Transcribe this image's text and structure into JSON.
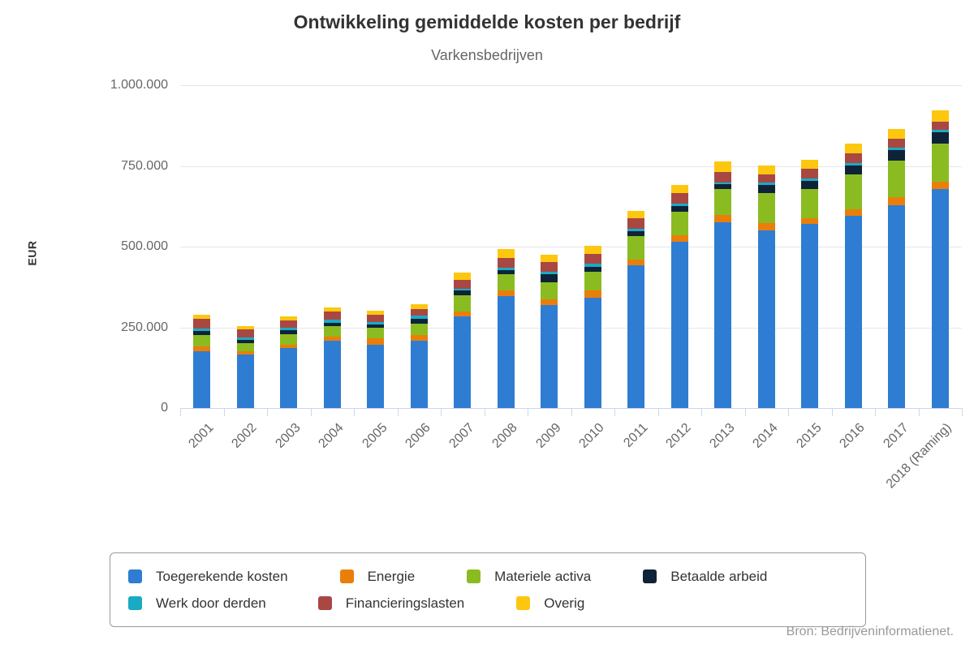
{
  "header": {
    "title": "Ontwikkeling gemiddelde kosten per bedrijf",
    "subtitle": "Varkensbedrijven"
  },
  "source": {
    "credit": "Bron: Bedrijveninformatienet."
  },
  "chart_data": {
    "type": "bar",
    "stacked": true,
    "title": "Ontwikkeling gemiddelde kosten per bedrijf",
    "subtitle": "Varkensbedrijven",
    "xlabel": "",
    "ylabel": "EUR",
    "ylim": [
      0,
      1000000
    ],
    "grid": true,
    "legend_position": "bottom",
    "yticks": [
      {
        "value": 0,
        "label": "0"
      },
      {
        "value": 250000,
        "label": "250.000"
      },
      {
        "value": 500000,
        "label": "500.000"
      },
      {
        "value": 750000,
        "label": "750.000"
      },
      {
        "value": 1000000,
        "label": "1.000.000"
      }
    ],
    "categories": [
      "2001",
      "2002",
      "2003",
      "2004",
      "2005",
      "2006",
      "2007",
      "2008",
      "2009",
      "2010",
      "2011",
      "2012",
      "2013",
      "2014",
      "2015",
      "2016",
      "2017",
      "2018 (Raming)"
    ],
    "series": [
      {
        "name": "Toegerekende kosten",
        "slug": "toegerekende-kosten",
        "color": "#2e7dd2",
        "values": [
          175000,
          165000,
          185000,
          208000,
          197000,
          208000,
          285000,
          346000,
          318000,
          342000,
          442000,
          514000,
          576000,
          550000,
          570000,
          595000,
          627000,
          678000
        ]
      },
      {
        "name": "Energie",
        "slug": "energie",
        "color": "#eb7e08",
        "values": [
          15000,
          11000,
          11000,
          14000,
          18000,
          18000,
          15000,
          18000,
          18000,
          22000,
          18000,
          21000,
          23000,
          23000,
          17000,
          21000,
          27000,
          24000
        ]
      },
      {
        "name": "Materiele activa",
        "slug": "materiele-activa",
        "color": "#8abc21",
        "values": [
          35000,
          24000,
          33000,
          32000,
          33000,
          35000,
          48000,
          51000,
          53000,
          58000,
          73000,
          73000,
          79000,
          94000,
          92000,
          107000,
          113000,
          117000
        ]
      },
      {
        "name": "Betaalde arbeid",
        "slug": "betaalde-arbeid",
        "color": "#0f2338",
        "values": [
          13000,
          10000,
          13000,
          10000,
          11000,
          15000,
          17000,
          11000,
          25000,
          15000,
          15000,
          18000,
          15000,
          24000,
          25000,
          29000,
          32000,
          35000
        ]
      },
      {
        "name": "Werk door derden",
        "slug": "werk-door-derden",
        "color": "#1aabc4",
        "values": [
          8000,
          8000,
          6000,
          11000,
          7000,
          10000,
          5000,
          8000,
          8000,
          10000,
          8000,
          8000,
          5000,
          8000,
          8000,
          8000,
          8000,
          8000
        ]
      },
      {
        "name": "Financieringslasten",
        "slug": "financieringslasten",
        "color": "#a94743",
        "values": [
          30000,
          25000,
          23000,
          23000,
          23000,
          20000,
          27000,
          30000,
          30000,
          30000,
          31000,
          32000,
          33000,
          25000,
          29000,
          29000,
          28000,
          24000
        ]
      },
      {
        "name": "Overig",
        "slug": "overig",
        "color": "#fdc70f",
        "values": [
          13000,
          11000,
          13000,
          13000,
          13000,
          15000,
          23000,
          28000,
          23000,
          25000,
          23000,
          26000,
          32000,
          28000,
          29000,
          31000,
          29000,
          35000
        ]
      }
    ],
    "legend_rows": [
      [
        0,
        1,
        2,
        3
      ],
      [
        4,
        5,
        6
      ]
    ],
    "colors": {
      "gridline": "#e6e6e6",
      "axis_line": "#ccd6eb",
      "title_text": "#333333",
      "label_text": "#666666",
      "source_text": "#999999",
      "legend_border": "#999999"
    }
  }
}
